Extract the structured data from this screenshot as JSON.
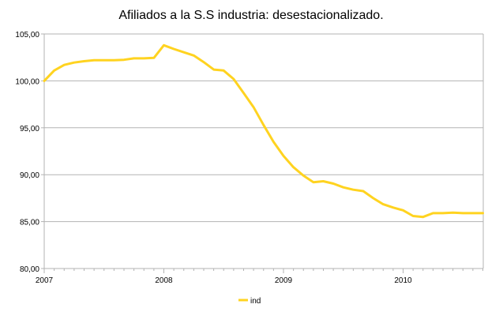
{
  "chart_data": {
    "type": "line",
    "title": "Afiliados a la S.S industria: desestacionalizado.",
    "xlabel": "",
    "ylabel": "",
    "xlim": [
      2007.0,
      2010.67
    ],
    "ylim": [
      80,
      105
    ],
    "y_ticks": [
      80,
      85,
      90,
      95,
      100,
      105
    ],
    "y_tick_labels": [
      "80,00",
      "85,00",
      "90,00",
      "95,00",
      "100,00",
      "105,00"
    ],
    "x_ticks": [
      2007,
      2008,
      2009,
      2010
    ],
    "x_tick_labels": [
      "2007",
      "2008",
      "2009",
      "2010"
    ],
    "grid": true,
    "legend_position": "bottom",
    "series": [
      {
        "name": "ind",
        "color": "#FFD320",
        "x": [
          2007.0,
          2007.083,
          2007.167,
          2007.25,
          2007.333,
          2007.417,
          2007.5,
          2007.583,
          2007.667,
          2007.75,
          2007.833,
          2007.917,
          2008.0,
          2008.083,
          2008.167,
          2008.25,
          2008.333,
          2008.417,
          2008.5,
          2008.583,
          2008.667,
          2008.75,
          2008.833,
          2008.917,
          2009.0,
          2009.083,
          2009.167,
          2009.25,
          2009.333,
          2009.417,
          2009.5,
          2009.583,
          2009.667,
          2009.75,
          2009.833,
          2009.917,
          2010.0,
          2010.083,
          2010.167,
          2010.25,
          2010.333,
          2010.417,
          2010.5,
          2010.583,
          2010.667
        ],
        "values": [
          100.0,
          101.1,
          101.7,
          101.95,
          102.1,
          102.2,
          102.2,
          102.2,
          102.25,
          102.4,
          102.4,
          102.45,
          103.8,
          103.4,
          103.05,
          102.7,
          102.0,
          101.2,
          101.1,
          100.2,
          98.7,
          97.2,
          95.3,
          93.5,
          92.0,
          90.8,
          89.9,
          89.2,
          89.3,
          89.05,
          88.65,
          88.4,
          88.25,
          87.5,
          86.85,
          86.5,
          86.2,
          85.6,
          85.5,
          85.9,
          85.9,
          85.95,
          85.9,
          85.9,
          85.9
        ]
      }
    ]
  }
}
